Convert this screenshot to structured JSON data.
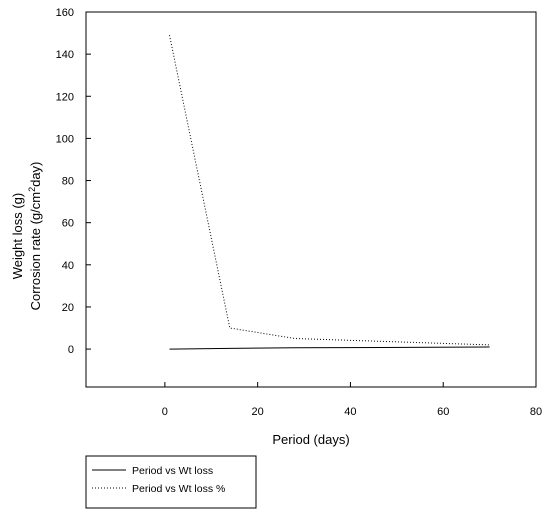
{
  "chart_data": {
    "type": "line",
    "xlabel": "Period (days)",
    "ylabel_lines": [
      "Weight loss (g)",
      "Corrosion rate (g/cm",
      "day)"
    ],
    "ylabel_superscript": "2",
    "xlim": [
      -17,
      80
    ],
    "ylim": [
      -18,
      160
    ],
    "xticks": [
      0,
      20,
      40,
      60,
      80
    ],
    "yticks": [
      0,
      20,
      40,
      60,
      80,
      100,
      120,
      140,
      160
    ],
    "grid": false,
    "legend_position": "bottom-left, below plot",
    "series": [
      {
        "name": "Period vs Wt loss",
        "style": "solid",
        "color": "#000000",
        "x": [
          1,
          14,
          28,
          70
        ],
        "y": [
          0,
          0.3,
          0.6,
          1.0
        ]
      },
      {
        "name": "Period vs Wt loss %",
        "style": "dotted",
        "color": "#000000",
        "x": [
          1,
          14,
          28,
          70
        ],
        "y": [
          149,
          10,
          5,
          2
        ]
      }
    ]
  }
}
